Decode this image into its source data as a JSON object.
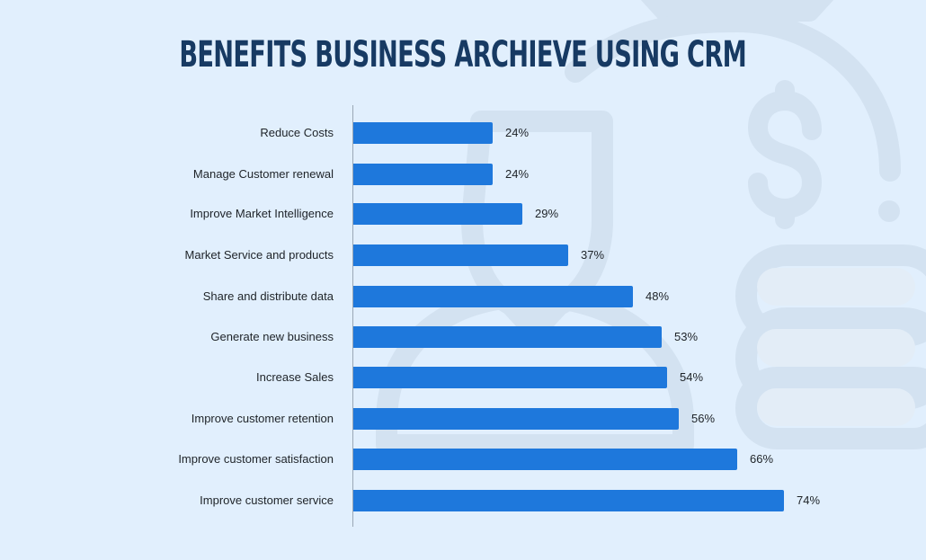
{
  "title": "BENEFITS BUSINESS ARCHIEVE USING CRM",
  "colors": {
    "background": "#e1effd",
    "bar": "#1e78dc",
    "title": "#173a63",
    "text": "#1e2328",
    "background_art": "#d3e2f1"
  },
  "chart_data": {
    "type": "bar",
    "orientation": "horizontal",
    "title": "BENEFITS BUSINESS ARCHIEVE USING CRM",
    "xlabel": "",
    "ylabel": "",
    "categories": [
      "Reduce Costs",
      "Manage Customer renewal",
      "Improve Market Intelligence",
      "Market Service and products",
      "Share and distribute data",
      "Generate new business",
      "Increase Sales",
      "Improve customer retention",
      "Improve customer satisfaction",
      "Improve customer service"
    ],
    "values": [
      24,
      24,
      29,
      37,
      48,
      53,
      54,
      56,
      66,
      74
    ],
    "value_labels": [
      "24%",
      "24%",
      "29%",
      "37%",
      "48%",
      "53%",
      "54%",
      "56%",
      "66%",
      "74%"
    ],
    "unit": "%",
    "xlim": [
      0,
      80
    ],
    "grid": false,
    "legend": null
  },
  "rows": [
    {
      "label": "Reduce Costs",
      "value": 24,
      "value_label": "24%"
    },
    {
      "label": "Manage Customer renewal",
      "value": 24,
      "value_label": "24%"
    },
    {
      "label": "Improve Market Intelligence",
      "value": 29,
      "value_label": "29%"
    },
    {
      "label": "Market Service and products",
      "value": 37,
      "value_label": "37%"
    },
    {
      "label": "Share and distribute data",
      "value": 48,
      "value_label": "48%"
    },
    {
      "label": "Generate new business",
      "value": 53,
      "value_label": "53%"
    },
    {
      "label": "Increase Sales",
      "value": 54,
      "value_label": "54%"
    },
    {
      "label": "Improve customer retention",
      "value": 56,
      "value_label": "56%"
    },
    {
      "label": "Improve customer satisfaction",
      "value": 66,
      "value_label": "66%"
    },
    {
      "label": "Improve customer service",
      "value": 74,
      "value_label": "74%"
    }
  ],
  "background_icons": [
    "money-bag-icon",
    "dollar-sign-icon",
    "user-icon",
    "coin-stack-icon"
  ]
}
